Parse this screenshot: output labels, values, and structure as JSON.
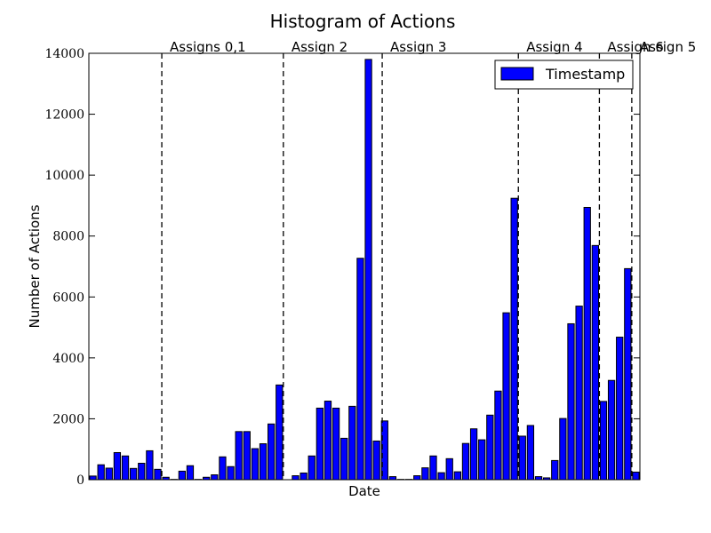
{
  "chart_data": {
    "type": "bar",
    "title": "Histogram of Actions",
    "xlabel": "Date",
    "ylabel": "Number of Actions",
    "ylim": [
      0,
      14000
    ],
    "yticks": [
      0,
      2000,
      4000,
      6000,
      8000,
      10000,
      12000,
      14000
    ],
    "grid": false,
    "legend": {
      "placement": "top-right",
      "entries": [
        "Timestamp"
      ]
    },
    "bar_color": "#0000ff",
    "series": [
      {
        "name": "Timestamp",
        "values": [
          120,
          490,
          380,
          890,
          780,
          370,
          540,
          950,
          340,
          80,
          10,
          280,
          460,
          10,
          80,
          160,
          750,
          430,
          1580,
          1580,
          1020,
          1180,
          1830,
          3110,
          0,
          130,
          220,
          780,
          2350,
          2580,
          2350,
          1360,
          2410,
          7270,
          13800,
          1270,
          1930,
          100,
          10,
          10,
          130,
          390,
          780,
          230,
          690,
          260,
          1190,
          1670,
          1310,
          2120,
          2910,
          5480,
          9240,
          1430,
          1780,
          100,
          60,
          630,
          2010,
          5120,
          5700,
          8940,
          7690,
          2570,
          3260,
          4680,
          6930,
          250
        ]
      }
    ],
    "annotations": [
      {
        "label": "Assigns 0,1",
        "bin": 9
      },
      {
        "label": "Assign 2",
        "bin": 24
      },
      {
        "label": "Assign 3",
        "bin": 36.2
      },
      {
        "label": "Assign 4",
        "bin": 53
      },
      {
        "label": "Assign 6",
        "bin": 63
      },
      {
        "label": "Assign 5",
        "bin": 67
      }
    ]
  }
}
